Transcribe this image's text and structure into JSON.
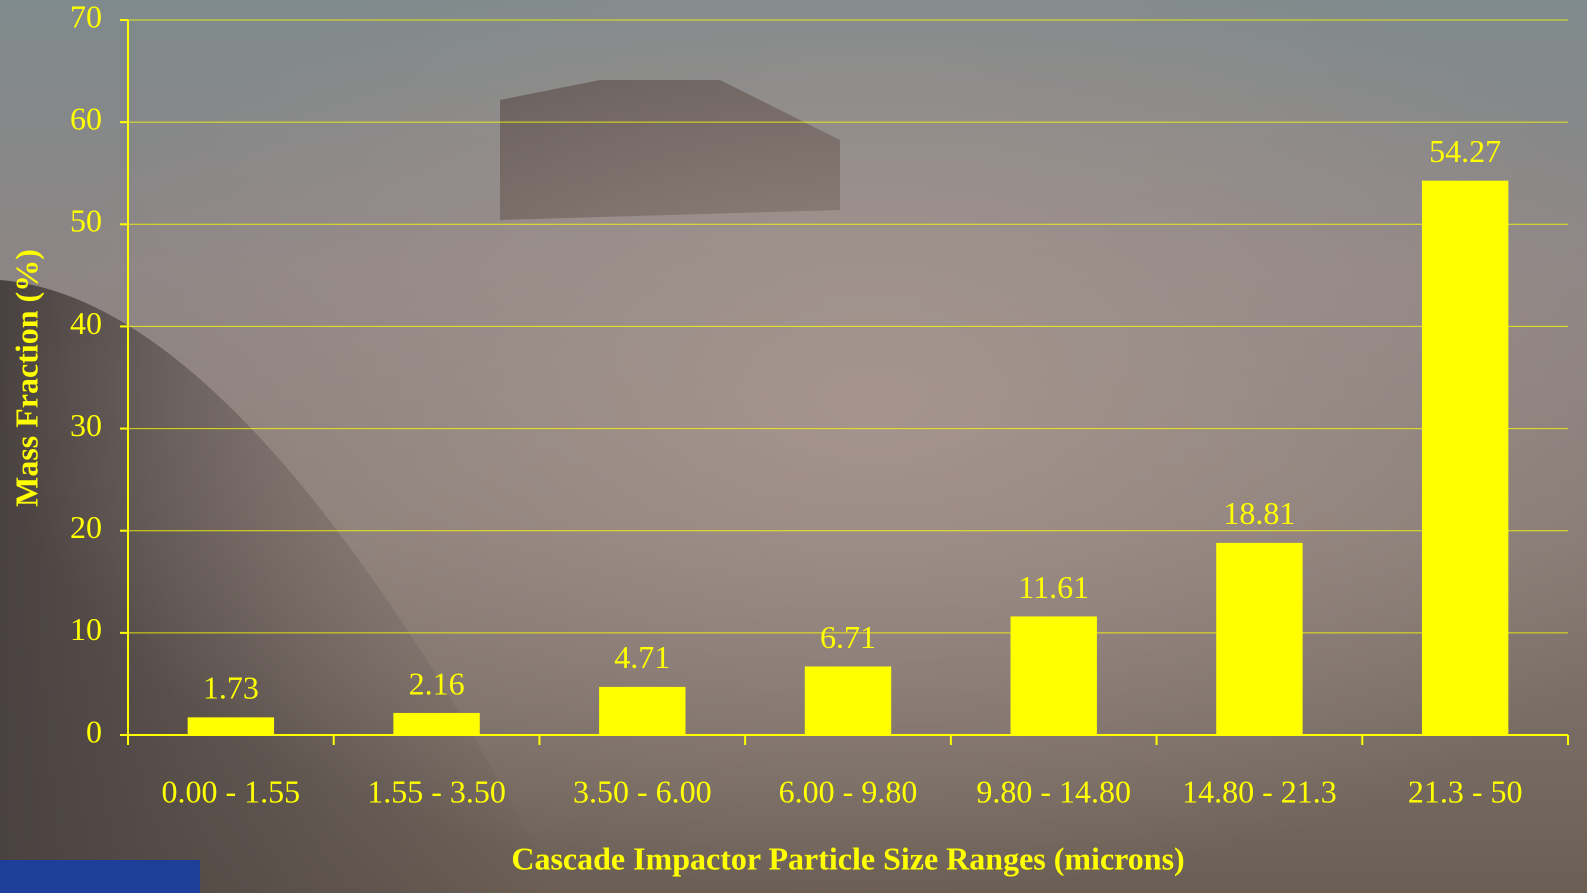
{
  "chart_data": {
    "type": "bar",
    "x_label": "Cascade Impactor Particle Size Ranges (microns)",
    "y_label": "Mass Fraction (%)",
    "categories": [
      "0.00 - 1.55",
      "1.55 - 3.50",
      "3.50 - 6.00",
      "6.00 - 9.80",
      "9.80 - 14.80",
      "14.80 - 21.3",
      "21.3 - 50"
    ],
    "values": [
      1.73,
      2.16,
      4.71,
      6.71,
      11.61,
      18.81,
      54.27
    ],
    "color": "#ffff00",
    "ylim": [
      0,
      70
    ],
    "yticks": [
      0,
      10,
      20,
      30,
      40,
      50,
      60,
      70
    ],
    "grid": true
  }
}
